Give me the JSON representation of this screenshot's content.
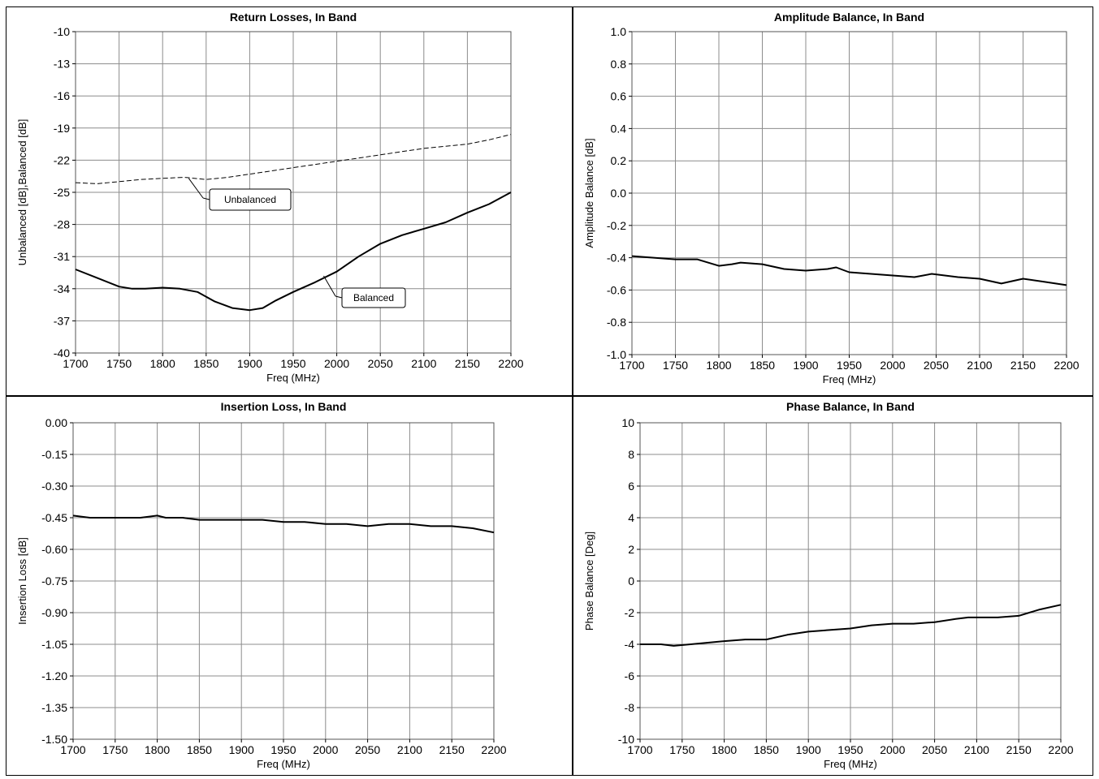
{
  "charts": [
    {
      "type": "line",
      "title": "Return Losses, In Band",
      "xlabel": "Freq (MHz)",
      "ylabel": "Unbalanced [dB],Balanced [dB]",
      "xlim": [
        1700,
        2200
      ],
      "ylim": [
        -40,
        -10
      ],
      "xticks": [
        "1700",
        "1750",
        "1800",
        "1850",
        "1900",
        "1950",
        "2000",
        "2050",
        "2100",
        "2150",
        "2200"
      ],
      "yticks": [
        "-10",
        "-13",
        "-16",
        "-19",
        "-22",
        "-25",
        "-28",
        "-31",
        "-34",
        "-37",
        "-40"
      ],
      "grid": true,
      "series": [
        {
          "name": "Unbalanced",
          "style": "dashed",
          "x": [
            1700,
            1725,
            1750,
            1775,
            1800,
            1825,
            1850,
            1875,
            1900,
            1925,
            1950,
            1975,
            2000,
            2025,
            2050,
            2075,
            2100,
            2125,
            2150,
            2175,
            2200
          ],
          "y": [
            -24.1,
            -24.2,
            -24.0,
            -23.8,
            -23.7,
            -23.6,
            -23.8,
            -23.6,
            -23.3,
            -23.0,
            -22.7,
            -22.4,
            -22.1,
            -21.8,
            -21.5,
            -21.2,
            -20.9,
            -20.7,
            -20.5,
            -20.1,
            -19.6
          ]
        },
        {
          "name": "Balanced",
          "style": "solid",
          "x": [
            1700,
            1725,
            1750,
            1765,
            1780,
            1800,
            1820,
            1840,
            1860,
            1880,
            1900,
            1915,
            1930,
            1950,
            1975,
            2000,
            2025,
            2050,
            2075,
            2100,
            2125,
            2150,
            2175,
            2200
          ],
          "y": [
            -32.2,
            -33.0,
            -33.8,
            -34.0,
            -34.0,
            -33.9,
            -34.0,
            -34.3,
            -35.2,
            -35.8,
            -36.0,
            -35.8,
            -35.1,
            -34.3,
            -33.4,
            -32.4,
            -31.0,
            -29.8,
            -29.0,
            -28.4,
            -27.8,
            -26.9,
            -26.1,
            -25.0
          ]
        }
      ],
      "annotations": [
        {
          "text": "Unbalanced",
          "series": "Unbalanced",
          "x": 1830,
          "y": -23.7
        },
        {
          "text": "Balanced",
          "series": "Balanced",
          "x": 1985,
          "y": -32.8
        }
      ]
    },
    {
      "type": "line",
      "title": "Amplitude Balance, In Band",
      "xlabel": "Freq (MHz)",
      "ylabel": "Amplitude Balance [dB]",
      "xlim": [
        1700,
        2200
      ],
      "ylim": [
        -1.0,
        1.0
      ],
      "xticks": [
        "1700",
        "1750",
        "1800",
        "1850",
        "1900",
        "1950",
        "2000",
        "2050",
        "2100",
        "2150",
        "2200"
      ],
      "yticks": [
        "1.0",
        "0.8",
        "0.6",
        "0.4",
        "0.2",
        "0.0",
        "-0.2",
        "-0.4",
        "-0.6",
        "-0.8",
        "-1.0"
      ],
      "grid": true,
      "series": [
        {
          "style": "solid",
          "x": [
            1700,
            1725,
            1750,
            1775,
            1800,
            1815,
            1825,
            1850,
            1875,
            1900,
            1925,
            1935,
            1950,
            1975,
            2000,
            2025,
            2045,
            2075,
            2100,
            2125,
            2150,
            2175,
            2200
          ],
          "y": [
            -0.39,
            -0.4,
            -0.41,
            -0.41,
            -0.45,
            -0.44,
            -0.43,
            -0.44,
            -0.47,
            -0.48,
            -0.47,
            -0.46,
            -0.49,
            -0.5,
            -0.51,
            -0.52,
            -0.5,
            -0.52,
            -0.53,
            -0.56,
            -0.53,
            -0.55,
            -0.57
          ]
        }
      ]
    },
    {
      "type": "line",
      "title": "Insertion Loss, In Band",
      "xlabel": "Freq (MHz)",
      "ylabel": "Insertion Loss [dB]",
      "xlim": [
        1700,
        2200
      ],
      "ylim": [
        -1.5,
        0.0
      ],
      "xticks": [
        "1700",
        "1750",
        "1800",
        "1850",
        "1900",
        "1950",
        "2000",
        "2050",
        "2100",
        "2150",
        "2200"
      ],
      "yticks": [
        "0.00",
        "-0.15",
        "-0.30",
        "-0.45",
        "-0.60",
        "-0.75",
        "-0.90",
        "-1.05",
        "-1.20",
        "-1.35",
        "-1.50"
      ],
      "grid": true,
      "series": [
        {
          "style": "solid",
          "x": [
            1700,
            1720,
            1750,
            1780,
            1800,
            1810,
            1830,
            1850,
            1875,
            1900,
            1925,
            1950,
            1975,
            2000,
            2025,
            2050,
            2075,
            2100,
            2125,
            2150,
            2175,
            2200
          ],
          "y": [
            -0.44,
            -0.45,
            -0.45,
            -0.45,
            -0.44,
            -0.45,
            -0.45,
            -0.46,
            -0.46,
            -0.46,
            -0.46,
            -0.47,
            -0.47,
            -0.48,
            -0.48,
            -0.49,
            -0.48,
            -0.48,
            -0.49,
            -0.49,
            -0.5,
            -0.52
          ]
        }
      ]
    },
    {
      "type": "line",
      "title": "Phase Balance, In Band",
      "xlabel": "Freq (MHz)",
      "ylabel": "Phase Balance [Deg]",
      "xlim": [
        1700,
        2200
      ],
      "ylim": [
        -10,
        10
      ],
      "xticks": [
        "1700",
        "1750",
        "1800",
        "1850",
        "1900",
        "1950",
        "2000",
        "2050",
        "2100",
        "2150",
        "2200"
      ],
      "yticks": [
        "10",
        "8",
        "6",
        "4",
        "2",
        "0",
        "-2",
        "-4",
        "-6",
        "-8",
        "-10"
      ],
      "grid": true,
      "series": [
        {
          "style": "solid",
          "x": [
            1700,
            1725,
            1740,
            1760,
            1800,
            1825,
            1850,
            1875,
            1900,
            1925,
            1950,
            1975,
            2000,
            2025,
            2050,
            2075,
            2090,
            2100,
            2125,
            2150,
            2175,
            2200
          ],
          "y": [
            -4.0,
            -4.0,
            -4.1,
            -4.0,
            -3.8,
            -3.7,
            -3.7,
            -3.4,
            -3.2,
            -3.1,
            -3.0,
            -2.8,
            -2.7,
            -2.7,
            -2.6,
            -2.4,
            -2.3,
            -2.3,
            -2.3,
            -2.2,
            -1.8,
            -1.5
          ]
        }
      ]
    }
  ]
}
